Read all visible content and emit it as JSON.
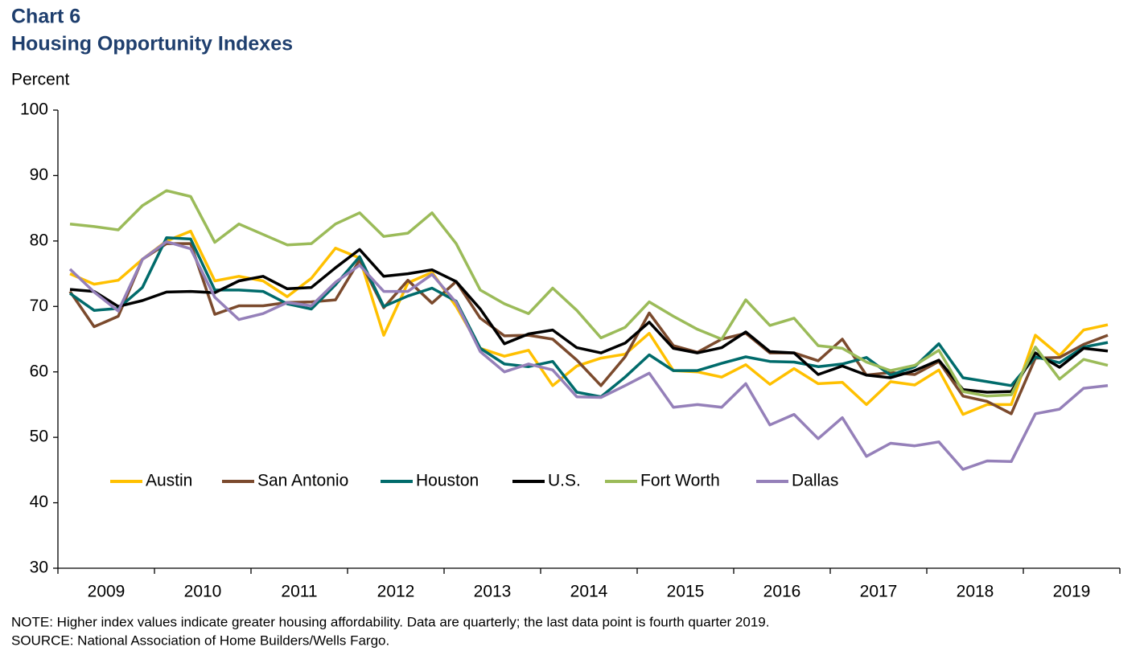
{
  "chart_data": {
    "type": "line",
    "title": "Chart 6",
    "subtitle": "Housing Opportunity Indexes",
    "y_label": "Percent",
    "note": "NOTE: Higher index values indicate greater housing  affordability. Data are quarterly; the last data point is fourth quarter 2019.",
    "source": "SOURCE: National Association of Home Builders/Wells Fargo.",
    "categories": [
      null,
      "2009",
      null,
      null,
      null,
      "2010",
      null,
      null,
      null,
      "2011",
      null,
      null,
      null,
      "2012",
      null,
      null,
      null,
      "2013",
      null,
      null,
      null,
      "2014",
      null,
      null,
      null,
      "2015",
      null,
      null,
      null,
      "2016",
      null,
      null,
      null,
      "2017",
      null,
      null,
      null,
      "2018",
      null,
      null,
      null,
      "2019",
      null,
      null
    ],
    "ylim": [
      30,
      100
    ],
    "yticks": [
      30,
      40,
      50,
      60,
      70,
      80,
      90,
      100
    ],
    "grid": false,
    "series": [
      {
        "name": "Austin",
        "color": "#ffc000",
        "values": [
          75.0,
          73.4,
          74.0,
          77.2,
          80.0,
          81.5,
          73.9,
          74.6,
          73.9,
          71.5,
          74.3,
          78.9,
          77.4,
          65.6,
          73.6,
          75.2,
          70.0,
          63.6,
          62.4,
          63.3,
          57.9,
          60.9,
          62.1,
          62.7,
          65.9,
          60.2,
          60.0,
          59.2,
          61.1,
          58.1,
          60.5,
          58.2,
          58.4,
          55.0,
          58.5,
          58.0,
          60.3,
          53.5,
          55.0,
          55.0,
          65.6,
          62.5,
          66.4,
          67.2
        ]
      },
      {
        "name": "San Antonio",
        "color": "#7b4a2d",
        "values": [
          72.3,
          66.9,
          68.5,
          77.2,
          79.6,
          79.6,
          68.8,
          70.1,
          70.1,
          70.6,
          70.7,
          71.0,
          77.1,
          69.8,
          74.0,
          70.5,
          73.8,
          68.2,
          65.5,
          65.6,
          65.0,
          61.8,
          57.9,
          62.3,
          69.0,
          64.0,
          63.0,
          65.0,
          65.9,
          62.9,
          62.9,
          61.7,
          65.0,
          59.5,
          59.9,
          59.6,
          61.6,
          56.3,
          55.5,
          53.6,
          62.1,
          62.2,
          64.2,
          65.6
        ]
      },
      {
        "name": "Houston",
        "color": "#006b6b",
        "values": [
          72.0,
          69.4,
          69.7,
          72.9,
          80.5,
          80.3,
          72.5,
          72.5,
          72.3,
          70.4,
          69.6,
          73.3,
          77.6,
          70.0,
          71.6,
          72.8,
          70.8,
          63.6,
          61.2,
          60.8,
          61.6,
          56.9,
          56.2,
          59.2,
          62.6,
          60.2,
          60.2,
          61.3,
          62.3,
          61.6,
          61.5,
          60.8,
          61.2,
          62.2,
          59.5,
          60.8,
          64.3,
          59.1,
          58.5,
          57.9,
          62.3,
          61.4,
          63.8,
          64.5
        ]
      },
      {
        "name": "U.S.",
        "color": "#000000",
        "values": [
          72.6,
          72.3,
          70.0,
          70.9,
          72.2,
          72.3,
          72.1,
          73.9,
          74.6,
          72.7,
          72.9,
          75.9,
          78.7,
          74.6,
          75.0,
          75.6,
          73.8,
          69.6,
          64.3,
          65.8,
          66.4,
          63.7,
          62.9,
          64.4,
          67.6,
          63.6,
          62.9,
          63.7,
          66.1,
          63.1,
          62.9,
          59.6,
          60.9,
          59.5,
          59.1,
          60.2,
          61.8,
          57.3,
          56.9,
          57.0,
          62.9,
          60.7,
          63.6,
          63.2
        ]
      },
      {
        "name": "Fort Worth",
        "color": "#9bbb59",
        "values": [
          82.6,
          82.2,
          81.7,
          85.4,
          87.7,
          86.8,
          79.8,
          82.6,
          81.0,
          79.4,
          79.6,
          82.6,
          84.3,
          80.7,
          81.2,
          84.3,
          79.6,
          72.5,
          70.4,
          68.9,
          72.8,
          69.4,
          65.2,
          66.8,
          70.7,
          68.5,
          66.5,
          65.0,
          71.0,
          67.1,
          68.2,
          64.0,
          63.6,
          61.5,
          60.2,
          61.0,
          63.3,
          57.0,
          56.3,
          56.5,
          63.8,
          58.9,
          61.9,
          61.0
        ]
      },
      {
        "name": "Dallas",
        "color": "#9580b9",
        "values": [
          75.7,
          72.2,
          69.3,
          77.2,
          79.9,
          78.8,
          71.4,
          68.0,
          68.9,
          70.6,
          70.1,
          73.7,
          76.3,
          72.3,
          72.3,
          74.9,
          70.6,
          63.1,
          60.0,
          61.2,
          60.3,
          56.2,
          56.1,
          57.9,
          59.8,
          54.6,
          55.0,
          54.6,
          58.2,
          51.9,
          53.5,
          49.8,
          53.0,
          47.1,
          49.1,
          48.7,
          49.3,
          45.1,
          46.4,
          46.3,
          53.6,
          54.3,
          57.5,
          57.9
        ]
      }
    ]
  }
}
